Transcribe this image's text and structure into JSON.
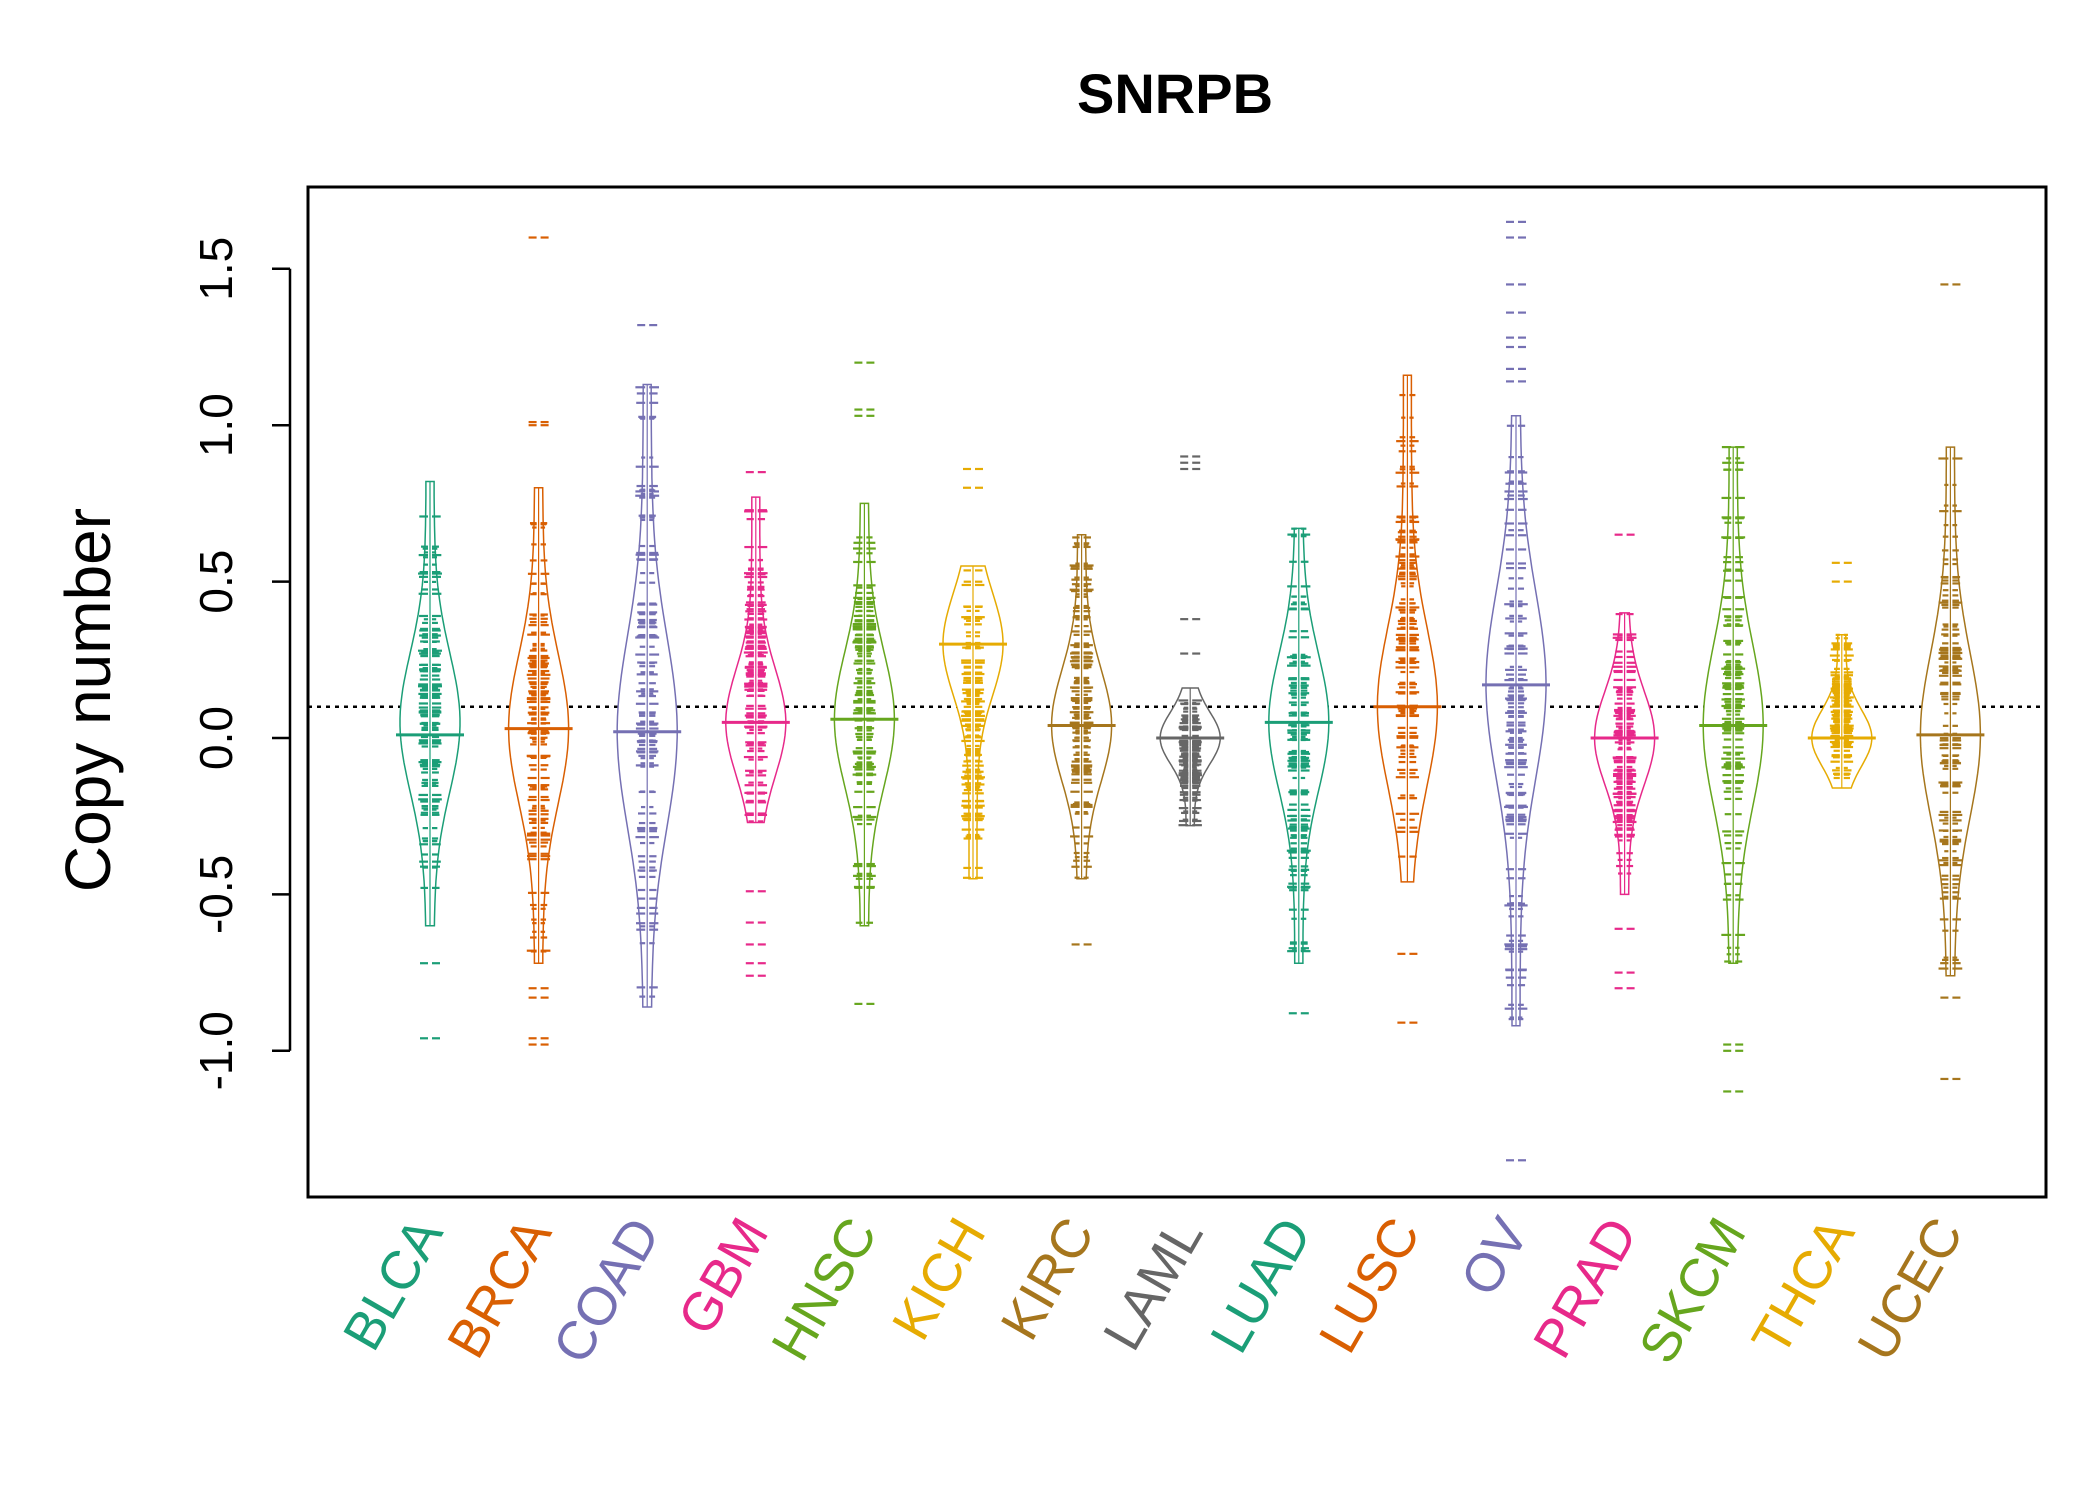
{
  "chart_data": {
    "type": "beanplot",
    "title": "SNRPB",
    "xlabel": "",
    "ylabel": "Copy number",
    "ylim": [
      -1.4,
      1.75
    ],
    "y_ticks": [
      -1.0,
      -0.5,
      0.0,
      0.5,
      1.0,
      1.5
    ],
    "y_tick_labels": [
      "-1.0",
      "-0.5",
      "0.0",
      "0.5",
      "1.0",
      "1.5"
    ],
    "reference_line": 0.1,
    "grid": false,
    "legend": "none",
    "series": [
      {
        "name": "BLCA",
        "color": "#1B9E77",
        "min": -0.6,
        "max": 0.82,
        "median": 0.01,
        "mode": 0.05,
        "outliers": [
          -0.72,
          -0.96
        ]
      },
      {
        "name": "BRCA",
        "color": "#D95F02",
        "min": -0.72,
        "max": 0.8,
        "median": 0.03,
        "mode": 0.03,
        "outliers": [
          -0.8,
          -0.83,
          -0.96,
          -0.98,
          1.0,
          1.01,
          1.6
        ]
      },
      {
        "name": "COAD",
        "color": "#7570B3",
        "min": -0.86,
        "max": 1.13,
        "median": 0.02,
        "mode": 0.02,
        "outliers": [
          1.32
        ]
      },
      {
        "name": "GBM",
        "color": "#E7298A",
        "min": -0.27,
        "max": 0.77,
        "median": 0.05,
        "mode": 0.05,
        "outliers": [
          -0.49,
          -0.59,
          -0.66,
          -0.72,
          -0.76,
          0.85
        ]
      },
      {
        "name": "HNSC",
        "color": "#66A61E",
        "min": -0.6,
        "max": 0.75,
        "median": 0.06,
        "mode": 0.06,
        "outliers": [
          -0.85,
          1.03,
          1.05,
          1.2
        ]
      },
      {
        "name": "KICH",
        "color": "#E6AB02",
        "min": -0.45,
        "max": 0.55,
        "median": 0.3,
        "mode": 0.3,
        "outliers": [
          0.8,
          0.86
        ]
      },
      {
        "name": "KIRC",
        "color": "#A6761D",
        "min": -0.45,
        "max": 0.65,
        "median": 0.04,
        "mode": 0.04,
        "outliers": [
          -0.66
        ]
      },
      {
        "name": "LAML",
        "color": "#666666",
        "min": -0.28,
        "max": 0.16,
        "median": 0.0,
        "mode": 0.0,
        "outliers": [
          0.27,
          0.38,
          0.86,
          0.88,
          0.9
        ]
      },
      {
        "name": "LUAD",
        "color": "#1B9E77",
        "min": -0.72,
        "max": 0.67,
        "median": 0.05,
        "mode": 0.05,
        "outliers": [
          -0.88
        ]
      },
      {
        "name": "LUSC",
        "color": "#D95F02",
        "min": -0.46,
        "max": 1.16,
        "median": 0.1,
        "mode": 0.1,
        "outliers": [
          -0.69,
          -0.91
        ]
      },
      {
        "name": "OV",
        "color": "#7570B3",
        "min": -0.92,
        "max": 1.03,
        "median": 0.17,
        "mode": 0.17,
        "outliers": [
          1.14,
          1.18,
          1.25,
          1.28,
          1.36,
          1.45,
          1.6,
          1.65,
          -1.35
        ]
      },
      {
        "name": "PRAD",
        "color": "#E7298A",
        "min": -0.5,
        "max": 0.4,
        "median": 0.0,
        "mode": 0.0,
        "outliers": [
          -0.61,
          -0.75,
          -0.8,
          0.65
        ]
      },
      {
        "name": "SKCM",
        "color": "#66A61E",
        "min": -0.72,
        "max": 0.93,
        "median": 0.04,
        "mode": 0.04,
        "outliers": [
          -0.98,
          -1.0,
          -1.13
        ]
      },
      {
        "name": "THCA",
        "color": "#E6AB02",
        "min": -0.16,
        "max": 0.33,
        "median": 0.0,
        "mode": 0.0,
        "outliers": [
          0.5,
          0.56
        ]
      },
      {
        "name": "UCEC",
        "color": "#A6761D",
        "min": -0.76,
        "max": 0.93,
        "median": 0.01,
        "mode": 0.01,
        "outliers": [
          -0.83,
          -1.09,
          1.45
        ]
      }
    ]
  }
}
